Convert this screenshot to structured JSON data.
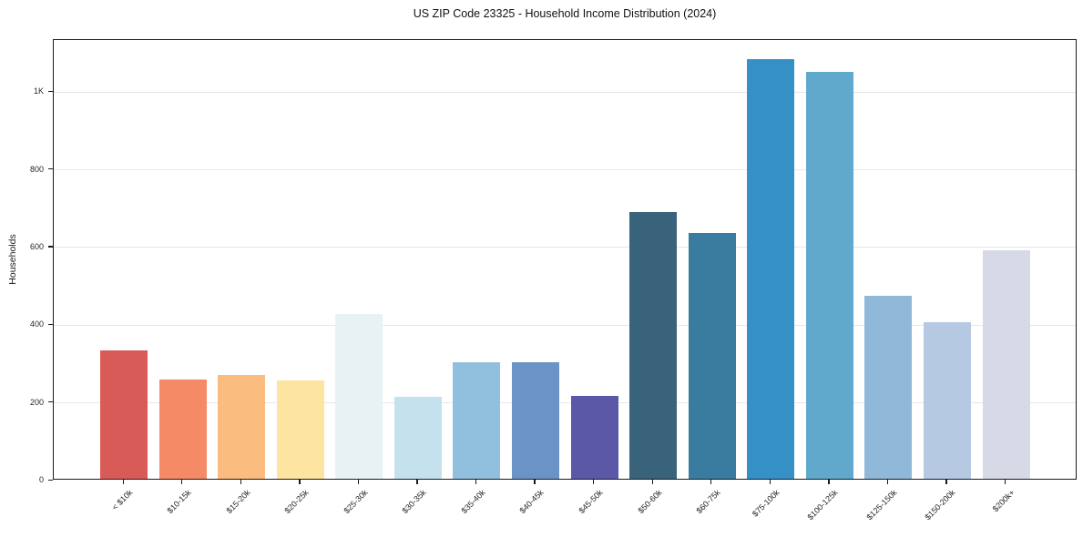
{
  "chart_data": {
    "type": "bar",
    "title": "US ZIP Code 23325 - Household Income Distribution (2024)",
    "xlabel": "",
    "ylabel": "Households",
    "categories": [
      "< $10k",
      "$10-15k",
      "$15-20k",
      "$20-25k",
      "$25-30k",
      "$30-35k",
      "$35-40k",
      "$40-45k",
      "$45-50k",
      "$50-60k",
      "$60-75k",
      "$75-100k",
      "$100-125k",
      "$125-150k",
      "$150-200k",
      "$200k+"
    ],
    "values": [
      330,
      256,
      268,
      252,
      425,
      210,
      301,
      301,
      214,
      686,
      632,
      1080,
      1048,
      472,
      404,
      588
    ],
    "bar_colors": [
      "#d95b57",
      "#f58a67",
      "#fbbc80",
      "#fde4a0",
      "#e8f2f5",
      "#c6e1ee",
      "#90c0dd",
      "#6b93c6",
      "#5b58a8",
      "#39627b",
      "#3a7ba0",
      "#3590c5",
      "#60a8cc",
      "#8fb8d9",
      "#b5c9e3",
      "#d8d9e6"
    ],
    "ylim": [
      0,
      1134
    ],
    "yticks": [
      {
        "value": 0,
        "label": "0"
      },
      {
        "value": 200,
        "label": "200"
      },
      {
        "value": 400,
        "label": "400"
      },
      {
        "value": 600,
        "label": "600"
      },
      {
        "value": 800,
        "label": "800"
      },
      {
        "value": 1000,
        "label": "1K"
      }
    ],
    "grid": "horizontal",
    "grid_color": "#e7e7e7",
    "legend_position": "none"
  }
}
